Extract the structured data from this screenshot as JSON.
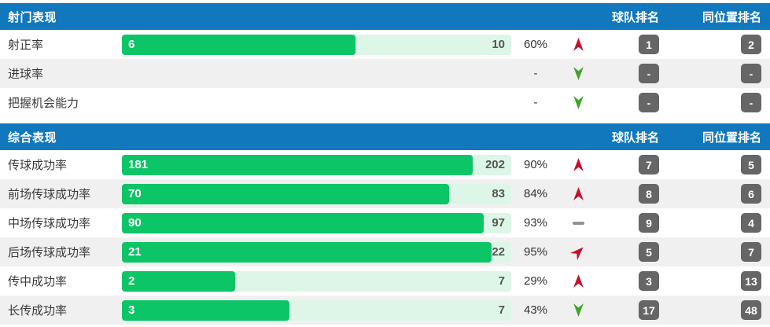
{
  "colors": {
    "header_blue": "#1278bd",
    "bar_green": "#0bc566",
    "bar_track_green": "#ddf6e8",
    "trend_up_red": "#c5112e",
    "trend_down_green": "#43a32a",
    "trend_flat_gray": "#8e9398",
    "rank_badge_gray": "#666666"
  },
  "columns": {
    "team_rank": "球队排名",
    "position_rank": "同位置排名"
  },
  "sections": [
    {
      "title": "射门表现",
      "rows": [
        {
          "label": "射正率",
          "has_bar": true,
          "value": "6",
          "max": "10",
          "percent": "60%",
          "percent_num": 60,
          "trend": "up",
          "team_rank": "1",
          "position_rank": "2"
        },
        {
          "label": "进球率",
          "has_bar": false,
          "percent": "-",
          "trend": "down",
          "team_rank": "-",
          "position_rank": "-"
        },
        {
          "label": "把握机会能力",
          "has_bar": false,
          "percent": "-",
          "trend": "down",
          "team_rank": "-",
          "position_rank": "-"
        }
      ]
    },
    {
      "title": "综合表现",
      "rows": [
        {
          "label": "传球成功率",
          "has_bar": true,
          "value": "181",
          "max": "202",
          "percent": "90%",
          "percent_num": 90,
          "trend": "up",
          "team_rank": "7",
          "position_rank": "5"
        },
        {
          "label": "前场传球成功率",
          "has_bar": true,
          "value": "70",
          "max": "83",
          "percent": "84%",
          "percent_num": 84,
          "trend": "up",
          "team_rank": "8",
          "position_rank": "6"
        },
        {
          "label": "中场传球成功率",
          "has_bar": true,
          "value": "90",
          "max": "97",
          "percent": "93%",
          "percent_num": 93,
          "trend": "flat",
          "team_rank": "9",
          "position_rank": "4"
        },
        {
          "label": "后场传球成功率",
          "has_bar": true,
          "value": "21",
          "max": "22",
          "percent": "95%",
          "percent_num": 95,
          "trend": "up-right",
          "team_rank": "5",
          "position_rank": "7"
        },
        {
          "label": "传中成功率",
          "has_bar": true,
          "value": "2",
          "max": "7",
          "percent": "29%",
          "percent_num": 29,
          "trend": "up",
          "team_rank": "3",
          "position_rank": "13"
        },
        {
          "label": "长传成功率",
          "has_bar": true,
          "value": "3",
          "max": "7",
          "percent": "43%",
          "percent_num": 43,
          "trend": "down",
          "team_rank": "17",
          "position_rank": "48"
        }
      ]
    }
  ]
}
